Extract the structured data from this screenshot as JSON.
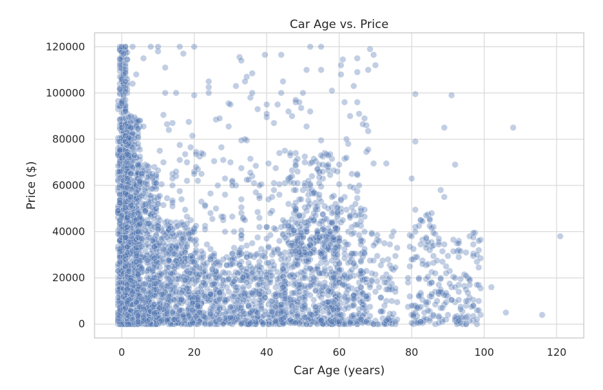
{
  "chart_data": {
    "type": "scatter",
    "title": "Car Age vs. Price",
    "xlabel": "Car Age (years)",
    "ylabel": "Price ($)",
    "xlim": [
      -7.5,
      127.5
    ],
    "ylim": [
      -6000,
      126000
    ],
    "xticks": [
      0,
      20,
      40,
      60,
      80,
      100,
      120
    ],
    "yticks": [
      0,
      20000,
      40000,
      60000,
      80000,
      100000,
      120000
    ],
    "grid": true,
    "point_color": "#4c72b0",
    "point_alpha": 0.35,
    "highlighted_points": [
      {
        "x": 121,
        "y": 38000
      },
      {
        "x": 116,
        "y": 4000
      },
      {
        "x": 108,
        "y": 85000
      },
      {
        "x": 106,
        "y": 5000
      },
      {
        "x": 102,
        "y": 16000
      },
      {
        "x": 98,
        "y": 30000
      },
      {
        "x": 98,
        "y": 17000
      },
      {
        "x": 97,
        "y": 8000
      },
      {
        "x": 93,
        "y": 1500
      },
      {
        "x": 93,
        "y": 35000
      },
      {
        "x": 92,
        "y": 69000
      },
      {
        "x": 91,
        "y": 99000
      },
      {
        "x": 89,
        "y": 85000
      },
      {
        "x": 88,
        "y": 58000
      },
      {
        "x": 89,
        "y": 55000
      },
      {
        "x": 81,
        "y": 99500
      },
      {
        "x": 81,
        "y": 79000
      },
      {
        "x": 80,
        "y": 63000
      },
      {
        "x": 80,
        "y": 28000
      },
      {
        "x": 79,
        "y": 20000
      },
      {
        "x": 75,
        "y": 40000
      },
      {
        "x": 73,
        "y": 69500
      },
      {
        "x": 68,
        "y": 110000
      },
      {
        "x": 67,
        "y": 89000
      },
      {
        "x": 65,
        "y": 115000
      },
      {
        "x": 65,
        "y": 109000
      },
      {
        "x": 64,
        "y": 103000
      },
      {
        "x": 63,
        "y": 90000
      },
      {
        "x": 62,
        "y": 80000
      },
      {
        "x": 60,
        "y": 69000
      },
      {
        "x": 58,
        "y": 101000
      },
      {
        "x": 55,
        "y": 110000
      },
      {
        "x": 55,
        "y": 120000
      },
      {
        "x": 52,
        "y": 120000
      },
      {
        "x": 52,
        "y": 92000
      },
      {
        "x": 51,
        "y": 110000
      },
      {
        "x": 50,
        "y": 100000
      },
      {
        "x": 48,
        "y": 97000
      },
      {
        "x": 47,
        "y": 90000
      },
      {
        "x": 44,
        "y": 100000
      },
      {
        "x": 43,
        "y": 95000
      },
      {
        "x": 40,
        "y": 95000
      },
      {
        "x": 36,
        "y": 100000
      },
      {
        "x": 34,
        "y": 105000
      },
      {
        "x": 34,
        "y": 80000
      },
      {
        "x": 33,
        "y": 79500
      },
      {
        "x": 30,
        "y": 95000
      },
      {
        "x": 27,
        "y": 89000
      },
      {
        "x": 24,
        "y": 105000
      },
      {
        "x": 24,
        "y": 100000
      },
      {
        "x": 20,
        "y": 120000
      },
      {
        "x": 17,
        "y": 117000
      },
      {
        "x": 16,
        "y": 120000
      },
      {
        "x": 15,
        "y": 100000
      },
      {
        "x": 12,
        "y": 111000
      },
      {
        "x": 12,
        "y": 100000
      },
      {
        "x": 10,
        "y": 120000
      },
      {
        "x": 8,
        "y": 120000
      },
      {
        "x": 6,
        "y": 115000
      },
      {
        "x": 4,
        "y": 108000
      },
      {
        "x": 3,
        "y": 120000
      },
      {
        "x": 1,
        "y": 120000
      },
      {
        "x": 0,
        "y": 120000
      },
      {
        "x": 20,
        "y": 99000
      },
      {
        "x": 18,
        "y": 70000
      },
      {
        "x": 22,
        "y": 65000
      },
      {
        "x": 26,
        "y": 50000
      },
      {
        "x": 28,
        "y": 45000
      },
      {
        "x": 31,
        "y": 40000
      },
      {
        "x": 36,
        "y": 35000
      },
      {
        "x": 45,
        "y": 75000
      },
      {
        "x": 38,
        "y": 60000
      }
    ],
    "density_clusters": [
      {
        "x_range": [
          -1,
          1.5
        ],
        "y_range": [
          0,
          120000
        ],
        "count": 700
      },
      {
        "x_range": [
          1,
          5
        ],
        "y_range": [
          0,
          90000
        ],
        "count": 600
      },
      {
        "x_range": [
          4,
          10
        ],
        "y_range": [
          0,
          70000
        ],
        "count": 450
      },
      {
        "x_range": [
          9,
          20
        ],
        "y_range": [
          0,
          45000
        ],
        "count": 420
      },
      {
        "x_range": [
          19,
          45
        ],
        "y_range": [
          0,
          31000
        ],
        "count": 600
      },
      {
        "x_range": [
          44,
          60
        ],
        "y_range": [
          0,
          45000
        ],
        "count": 420
      },
      {
        "x_range": [
          46,
          58
        ],
        "y_range": [
          30000,
          75000
        ],
        "count": 140
      },
      {
        "x_range": [
          58,
          67
        ],
        "y_range": [
          0,
          60000
        ],
        "count": 220
      },
      {
        "x_range": [
          66,
          76
        ],
        "y_range": [
          0,
          40000
        ],
        "count": 110
      },
      {
        "x_range": [
          79,
          86
        ],
        "y_range": [
          0,
          50000
        ],
        "count": 90
      },
      {
        "x_range": [
          86,
          99
        ],
        "y_range": [
          0,
          40000
        ],
        "count": 130
      },
      {
        "x_range": [
          10,
          60
        ],
        "y_range": [
          30000,
          75000
        ],
        "count": 180
      },
      {
        "x_range": [
          0,
          70
        ],
        "y_range": [
          60000,
          120000
        ],
        "count": 90
      }
    ]
  }
}
